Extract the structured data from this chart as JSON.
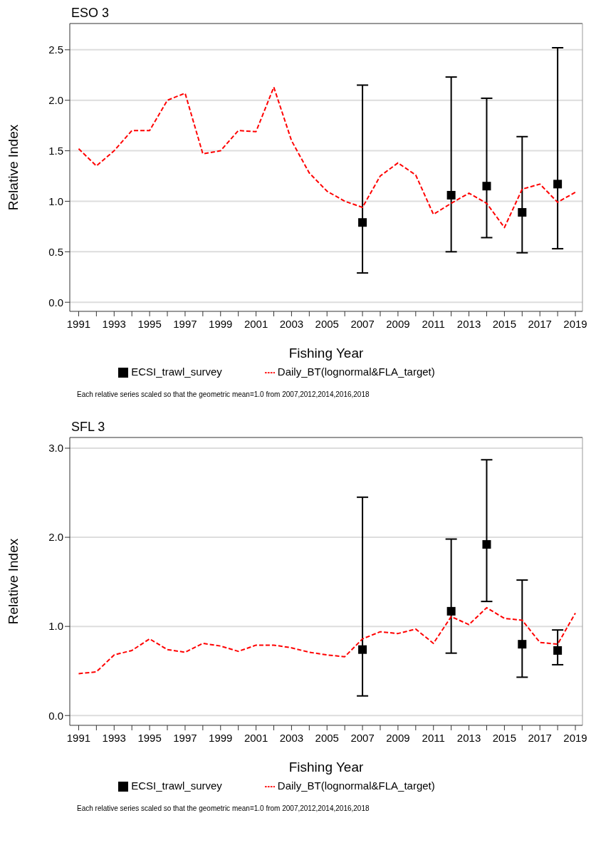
{
  "chart_data": [
    {
      "type": "line",
      "title": "ESO 3",
      "xlabel": "Fishing Year",
      "ylabel": "Relative Index",
      "legend": "bottom",
      "grid": "y",
      "xlim": [
        1990.5,
        2019.4
      ],
      "xticks": [
        1991,
        {
          "value": 1992,
          "label": null
        },
        1993,
        {
          "value": 1994,
          "label": null
        },
        1995,
        {
          "value": 1996,
          "label": null
        },
        1997,
        {
          "value": 1998,
          "label": null
        },
        1999,
        {
          "value": 2000,
          "label": null
        },
        2001,
        {
          "value": 2002,
          "label": null
        },
        2003,
        {
          "value": 2004,
          "label": null
        },
        2005,
        {
          "value": 2006,
          "label": null
        },
        2007,
        {
          "value": 2008,
          "label": null
        },
        2009,
        {
          "value": 2010,
          "label": null
        },
        2011,
        {
          "value": 2012,
          "label": null
        },
        2013,
        {
          "value": 2014,
          "label": null
        },
        2015,
        {
          "value": 2016,
          "label": null
        },
        2017,
        {
          "value": 2018,
          "label": null
        },
        2019
      ],
      "ylim": [
        -0.09,
        2.76
      ],
      "yticks": [
        {
          "value": 0,
          "label": "0.0"
        },
        {
          "value": 0.5,
          "label": "0.5"
        },
        {
          "value": 1,
          "label": "1.0"
        },
        {
          "value": 1.5,
          "label": "1.5"
        },
        {
          "value": 2,
          "label": "2.0"
        },
        {
          "value": 2.5,
          "label": "2.5"
        }
      ],
      "series": [
        {
          "name": "ECSI_trawl_survey",
          "type": "scatter",
          "marker": "square",
          "color": "#000000",
          "x": [
            2007,
            2012,
            2014,
            2016,
            2018
          ],
          "values": [
            0.79,
            1.06,
            1.15,
            0.89,
            1.17
          ],
          "errors": [
            [
              0.29,
              2.15
            ],
            [
              0.5,
              2.23
            ],
            [
              0.64,
              2.02
            ],
            [
              0.49,
              1.64
            ],
            [
              0.53,
              2.52
            ]
          ]
        },
        {
          "name": "Daily_BT(lognormal&FLA_target)",
          "line_style": "dashed",
          "marker": "none",
          "color": "#ff0000",
          "x": [
            1991,
            1992,
            1993,
            1994,
            1995,
            1996,
            1997,
            1998,
            1999,
            2000,
            2001,
            2002,
            2003,
            2004,
            2005,
            2006,
            2007,
            2008,
            2009,
            2010,
            2011,
            2012,
            2013,
            2014,
            2015,
            2016,
            2017,
            2018,
            2019
          ],
          "values": [
            1.52,
            1.35,
            1.5,
            1.7,
            1.7,
            2.0,
            2.07,
            1.47,
            1.5,
            1.7,
            1.69,
            2.13,
            1.6,
            1.28,
            1.1,
            1.0,
            0.94,
            1.25,
            1.38,
            1.26,
            0.87,
            0.98,
            1.08,
            0.98,
            0.74,
            1.12,
            1.17,
            0.99,
            1.09
          ]
        }
      ],
      "annotations": [
        "Each relative series scaled so that the geometric mean=1.0 from 2007,2012,2014,2016,2018"
      ]
    },
    {
      "type": "line",
      "title": "SFL 3",
      "xlabel": "Fishing Year",
      "ylabel": "Relative Index",
      "legend": "bottom",
      "grid": "y",
      "xlim": [
        1990.5,
        2019.4
      ],
      "xticks": [
        1991,
        {
          "value": 1992,
          "label": null
        },
        1993,
        {
          "value": 1994,
          "label": null
        },
        1995,
        {
          "value": 1996,
          "label": null
        },
        1997,
        {
          "value": 1998,
          "label": null
        },
        1999,
        {
          "value": 2000,
          "label": null
        },
        2001,
        {
          "value": 2002,
          "label": null
        },
        2003,
        {
          "value": 2004,
          "label": null
        },
        2005,
        {
          "value": 2006,
          "label": null
        },
        2007,
        {
          "value": 2008,
          "label": null
        },
        2009,
        {
          "value": 2010,
          "label": null
        },
        2011,
        {
          "value": 2012,
          "label": null
        },
        2013,
        {
          "value": 2014,
          "label": null
        },
        2015,
        {
          "value": 2016,
          "label": null
        },
        2017,
        {
          "value": 2018,
          "label": null
        },
        2019
      ],
      "ylim": [
        -0.11,
        3.12
      ],
      "yticks": [
        {
          "value": 0,
          "label": "0.0"
        },
        {
          "value": 1,
          "label": "1.0"
        },
        {
          "value": 2,
          "label": "2.0"
        },
        {
          "value": 3,
          "label": "3.0"
        }
      ],
      "series": [
        {
          "name": "ECSI_trawl_survey",
          "type": "scatter",
          "marker": "square",
          "color": "#000000",
          "x": [
            2007,
            2012,
            2014,
            2016,
            2018
          ],
          "values": [
            0.74,
            1.17,
            1.92,
            0.8,
            0.73
          ],
          "errors": [
            [
              0.22,
              2.45
            ],
            [
              0.7,
              1.98
            ],
            [
              1.28,
              2.87
            ],
            [
              0.43,
              1.52
            ],
            [
              0.57,
              0.96
            ]
          ]
        },
        {
          "name": "Daily_BT(lognormal&FLA_target)",
          "line_style": "dashed",
          "marker": "none",
          "color": "#ff0000",
          "x": [
            1991,
            1992,
            1993,
            1994,
            1995,
            1996,
            1997,
            1998,
            1999,
            2000,
            2001,
            2002,
            2003,
            2004,
            2005,
            2006,
            2007,
            2008,
            2009,
            2010,
            2011,
            2012,
            2013,
            2014,
            2015,
            2016,
            2017,
            2018,
            2019
          ],
          "values": [
            0.47,
            0.49,
            0.68,
            0.73,
            0.86,
            0.74,
            0.71,
            0.81,
            0.78,
            0.72,
            0.79,
            0.79,
            0.76,
            0.71,
            0.68,
            0.66,
            0.86,
            0.94,
            0.92,
            0.97,
            0.81,
            1.11,
            1.02,
            1.21,
            1.09,
            1.07,
            0.82,
            0.8,
            1.15
          ]
        }
      ],
      "annotations": [
        "Each relative series scaled so that the geometric mean=1.0 from 2007,2012,2014,2016,2018"
      ]
    }
  ]
}
